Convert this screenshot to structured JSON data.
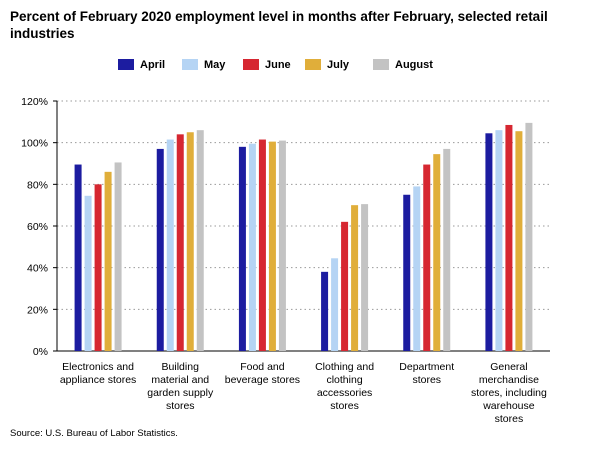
{
  "chart_data": {
    "type": "bar",
    "title": "Percent of February 2020 employment level in months after February, selected retail industries",
    "xlabel": "",
    "ylabel": "",
    "ylim": [
      0,
      120
    ],
    "yticks": [
      "0%",
      "20%",
      "40%",
      "60%",
      "80%",
      "100%",
      "120%"
    ],
    "grid": "horizontal dotted",
    "legend_position": "top",
    "categories": [
      "Electronics and appliance stores",
      "Building material and garden supply stores",
      "Food and beverage stores",
      "Clothing and clothing accessories stores",
      "Department stores",
      "General merchandise stores, including warehouse stores"
    ],
    "category_lines": [
      [
        "Electronics and",
        "appliance stores"
      ],
      [
        "Building",
        "material and",
        "garden supply",
        "stores"
      ],
      [
        "Food and",
        "beverage stores"
      ],
      [
        "Clothing and",
        "clothing",
        "accessories",
        "stores"
      ],
      [
        "Department",
        "stores"
      ],
      [
        "General",
        "merchandise",
        "stores, including",
        "warehouse",
        "stores"
      ]
    ],
    "series": [
      {
        "name": "April",
        "color": "#1c1ca0",
        "values": [
          89.5,
          97.0,
          98.0,
          38.0,
          75.0,
          104.5
        ]
      },
      {
        "name": "May",
        "color": "#b5d4f4",
        "values": [
          74.5,
          101.5,
          99.5,
          44.5,
          79.0,
          106.0
        ]
      },
      {
        "name": "June",
        "color": "#d62731",
        "values": [
          80.0,
          104.0,
          101.5,
          62.0,
          89.5,
          108.5
        ]
      },
      {
        "name": "July",
        "color": "#e0ae3a",
        "values": [
          86.0,
          105.0,
          100.5,
          70.0,
          94.5,
          105.5
        ]
      },
      {
        "name": "August",
        "color": "#c3c3c3",
        "values": [
          90.5,
          106.0,
          101.0,
          70.5,
          97.0,
          109.5
        ]
      }
    ]
  },
  "source": "Source: U.S. Bureau of Labor Statistics."
}
